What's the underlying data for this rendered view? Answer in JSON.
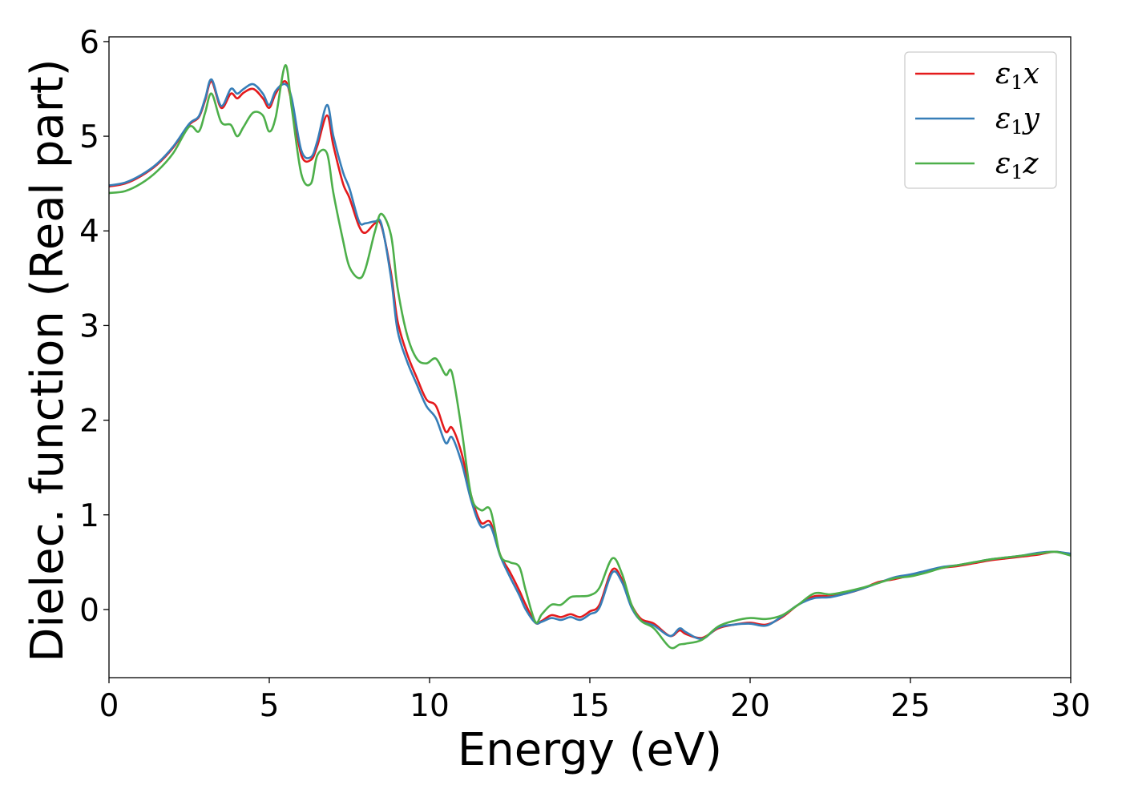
{
  "chart_data": {
    "type": "line",
    "title": "",
    "xlabel": "Energy (eV)",
    "ylabel": "Dielec. function (Real part)",
    "xlim": [
      0,
      30
    ],
    "ylim": [
      -0.72,
      6.05
    ],
    "xticks": [
      0,
      5,
      10,
      15,
      20,
      25,
      30
    ],
    "yticks": [
      0,
      1,
      2,
      3,
      4,
      5,
      6
    ],
    "grid": false,
    "legend_position": "top-right",
    "series": [
      {
        "name": "ε1x",
        "label_main": "ε",
        "label_sub": "1",
        "label_suffix": "x",
        "color": "#e41a1c",
        "x": [
          0,
          0.5,
          1,
          1.5,
          2,
          2.5,
          2.8,
          3.0,
          3.2,
          3.5,
          3.8,
          4.0,
          4.2,
          4.5,
          4.8,
          5.0,
          5.2,
          5.5,
          5.7,
          6.0,
          6.3,
          6.5,
          6.8,
          7.0,
          7.3,
          7.5,
          7.8,
          8.0,
          8.3,
          8.5,
          8.8,
          9.0,
          9.3,
          9.6,
          9.9,
          10.2,
          10.5,
          10.7,
          11.0,
          11.3,
          11.6,
          11.9,
          12.2,
          12.5,
          12.8,
          13.0,
          13.3,
          13.5,
          13.8,
          14.1,
          14.4,
          14.7,
          15.0,
          15.3,
          15.7,
          16.0,
          16.3,
          16.6,
          17.0,
          17.5,
          17.8,
          18.0,
          18.5,
          19.0,
          19.5,
          20.0,
          20.5,
          21.0,
          21.5,
          22.0,
          22.5,
          23.0,
          23.5,
          24.0,
          24.5,
          25.0,
          25.5,
          26.0,
          26.5,
          27.0,
          27.5,
          28.0,
          28.5,
          29.0,
          29.5,
          30.0
        ],
        "y": [
          4.47,
          4.5,
          4.58,
          4.7,
          4.88,
          5.12,
          5.2,
          5.38,
          5.58,
          5.3,
          5.45,
          5.4,
          5.46,
          5.5,
          5.4,
          5.3,
          5.45,
          5.58,
          5.35,
          4.8,
          4.75,
          4.9,
          5.22,
          4.9,
          4.5,
          4.35,
          4.05,
          3.98,
          4.08,
          4.05,
          3.55,
          3.05,
          2.7,
          2.45,
          2.22,
          2.15,
          1.88,
          1.92,
          1.65,
          1.2,
          0.92,
          0.92,
          0.58,
          0.4,
          0.2,
          0.05,
          -0.14,
          -0.12,
          -0.06,
          -0.08,
          -0.05,
          -0.08,
          -0.02,
          0.05,
          0.42,
          0.32,
          0.05,
          -0.1,
          -0.15,
          -0.28,
          -0.22,
          -0.26,
          -0.3,
          -0.2,
          -0.16,
          -0.14,
          -0.16,
          -0.08,
          0.05,
          0.14,
          0.14,
          0.17,
          0.22,
          0.29,
          0.32,
          0.36,
          0.4,
          0.44,
          0.46,
          0.49,
          0.52,
          0.54,
          0.56,
          0.58,
          0.61,
          0.58
        ]
      },
      {
        "name": "ε1y",
        "label_main": "ε",
        "label_sub": "1",
        "label_suffix": "y",
        "color": "#377eb8",
        "x": [
          0,
          0.5,
          1,
          1.5,
          2,
          2.5,
          2.8,
          3.0,
          3.2,
          3.5,
          3.8,
          4.0,
          4.2,
          4.5,
          4.8,
          5.0,
          5.2,
          5.5,
          5.7,
          6.0,
          6.3,
          6.5,
          6.8,
          7.0,
          7.3,
          7.5,
          7.8,
          8.0,
          8.3,
          8.5,
          8.8,
          9.0,
          9.3,
          9.6,
          9.9,
          10.2,
          10.5,
          10.7,
          11.0,
          11.3,
          11.6,
          11.9,
          12.2,
          12.5,
          12.8,
          13.0,
          13.3,
          13.5,
          13.8,
          14.1,
          14.4,
          14.7,
          15.0,
          15.3,
          15.7,
          16.0,
          16.3,
          16.6,
          17.0,
          17.5,
          17.8,
          18.0,
          18.5,
          19.0,
          19.5,
          20.0,
          20.5,
          21.0,
          21.5,
          22.0,
          22.5,
          23.0,
          23.5,
          24.0,
          24.5,
          25.0,
          25.5,
          26.0,
          26.5,
          27.0,
          27.5,
          28.0,
          28.5,
          29.0,
          29.5,
          30.0
        ],
        "y": [
          4.48,
          4.51,
          4.59,
          4.71,
          4.89,
          5.13,
          5.21,
          5.4,
          5.6,
          5.32,
          5.5,
          5.45,
          5.5,
          5.55,
          5.45,
          5.33,
          5.48,
          5.55,
          5.4,
          4.85,
          4.78,
          4.95,
          5.33,
          5.0,
          4.62,
          4.45,
          4.1,
          4.08,
          4.1,
          4.07,
          3.5,
          2.95,
          2.62,
          2.38,
          2.15,
          2.02,
          1.76,
          1.82,
          1.55,
          1.15,
          0.88,
          0.88,
          0.57,
          0.35,
          0.15,
          0.0,
          -0.14,
          -0.13,
          -0.09,
          -0.11,
          -0.08,
          -0.11,
          -0.05,
          0.02,
          0.39,
          0.29,
          0.02,
          -0.12,
          -0.17,
          -0.28,
          -0.2,
          -0.24,
          -0.31,
          -0.19,
          -0.16,
          -0.15,
          -0.17,
          -0.07,
          0.05,
          0.12,
          0.13,
          0.17,
          0.22,
          0.28,
          0.34,
          0.37,
          0.41,
          0.45,
          0.47,
          0.5,
          0.53,
          0.55,
          0.57,
          0.6,
          0.61,
          0.59
        ]
      },
      {
        "name": "ε1z",
        "label_main": "ε",
        "label_sub": "1",
        "label_suffix": "z",
        "color": "#4daf4a",
        "x": [
          0,
          0.5,
          1,
          1.5,
          2,
          2.5,
          2.8,
          3.0,
          3.2,
          3.5,
          3.8,
          4.0,
          4.2,
          4.5,
          4.8,
          5.0,
          5.2,
          5.5,
          5.7,
          6.0,
          6.3,
          6.5,
          6.8,
          7.0,
          7.3,
          7.5,
          7.8,
          8.0,
          8.3,
          8.5,
          8.8,
          9.0,
          9.3,
          9.6,
          9.9,
          10.2,
          10.5,
          10.7,
          11.0,
          11.3,
          11.6,
          11.9,
          12.2,
          12.5,
          12.8,
          13.0,
          13.3,
          13.5,
          13.8,
          14.1,
          14.4,
          14.7,
          15.0,
          15.3,
          15.7,
          16.0,
          16.3,
          16.6,
          17.0,
          17.5,
          17.8,
          18.0,
          18.5,
          19.0,
          19.5,
          20.0,
          20.5,
          21.0,
          21.5,
          22.0,
          22.5,
          23.0,
          23.5,
          24.0,
          24.5,
          25.0,
          25.5,
          26.0,
          26.5,
          27.0,
          27.5,
          28.0,
          28.5,
          29.0,
          29.5,
          30.0
        ],
        "y": [
          4.4,
          4.42,
          4.5,
          4.63,
          4.82,
          5.1,
          5.05,
          5.25,
          5.45,
          5.15,
          5.12,
          5.0,
          5.1,
          5.25,
          5.22,
          5.05,
          5.2,
          5.75,
          5.3,
          4.6,
          4.5,
          4.8,
          4.82,
          4.4,
          3.9,
          3.62,
          3.5,
          3.6,
          4.0,
          4.18,
          3.95,
          3.4,
          2.9,
          2.65,
          2.6,
          2.65,
          2.48,
          2.5,
          1.9,
          1.2,
          1.05,
          1.05,
          0.58,
          0.5,
          0.45,
          0.2,
          -0.13,
          -0.05,
          0.05,
          0.05,
          0.13,
          0.14,
          0.15,
          0.23,
          0.54,
          0.38,
          0.05,
          -0.12,
          -0.2,
          -0.4,
          -0.37,
          -0.36,
          -0.32,
          -0.18,
          -0.12,
          -0.09,
          -0.1,
          -0.06,
          0.05,
          0.17,
          0.16,
          0.19,
          0.23,
          0.28,
          0.33,
          0.35,
          0.39,
          0.44,
          0.47,
          0.5,
          0.53,
          0.55,
          0.57,
          0.59,
          0.61,
          0.57
        ]
      }
    ]
  }
}
